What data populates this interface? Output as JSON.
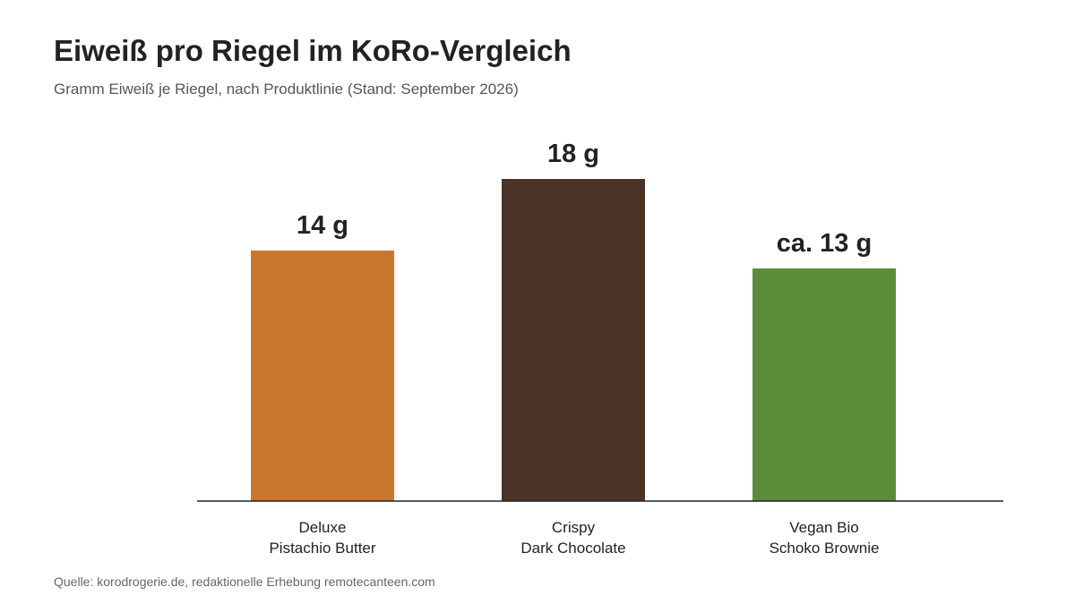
{
  "chart_data": {
    "type": "bar",
    "title": "Eiweiß pro Riegel im KoRo-Vergleich",
    "subtitle": "Gramm Eiweiß je Riegel, nach Produktlinie (Stand: September 2026)",
    "xlabel": "",
    "ylabel": "",
    "unit": "g",
    "ylim": [
      0,
      18
    ],
    "grid": false,
    "categories": [
      [
        "Deluxe",
        "Pistachio Butter"
      ],
      [
        "Crispy",
        "Dark Chocolate"
      ],
      [
        "Vegan Bio",
        "Schoko Brownie"
      ]
    ],
    "values": [
      14,
      18,
      13
    ],
    "data_labels": [
      "14 g",
      "18 g",
      "ca. 13 g"
    ],
    "colors": [
      "#C87630",
      "#4A3428",
      "#5B8C3A"
    ]
  },
  "source": "Quelle: korodrogerie.de, redaktionelle Erhebung remotecanteen.com"
}
